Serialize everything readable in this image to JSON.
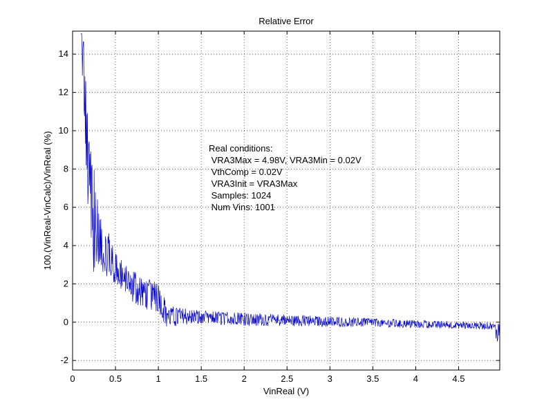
{
  "chart_data": {
    "type": "line",
    "title": "Relative Error",
    "xlabel": "VinReal (V)",
    "ylabel": "100.(VinReal-VinCalc)/VinReal  (%)",
    "xlim": [
      0,
      4.98
    ],
    "ylim": [
      -2.5,
      15.2
    ],
    "x_ticks": [
      0,
      0.5,
      1,
      1.5,
      2,
      2.5,
      3,
      3.5,
      4,
      4.5
    ],
    "x_tick_labels": [
      "0",
      "0.5",
      "1",
      "1.5",
      "2",
      "2.5",
      "3",
      "3.5",
      "4",
      "4.5"
    ],
    "y_ticks": [
      -2,
      0,
      2,
      4,
      6,
      8,
      10,
      12,
      14
    ],
    "y_tick_labels": [
      "-2",
      "0",
      "2",
      "4",
      "6",
      "8",
      "10",
      "12",
      "14"
    ],
    "grid": true,
    "line_color": "#0000cc",
    "annotation": [
      "Real conditions:",
      " VRA3Max = 4.98V, VRA3Min = 0.02V",
      " VthComp = 0.02V",
      " VRA3Init = VRA3Max",
      " Samples: 1024",
      " Num Vins: 1001"
    ],
    "series": [
      {
        "x": [
          0.1,
          0.12,
          0.14,
          0.16,
          0.18,
          0.2,
          0.25,
          0.3,
          0.35,
          0.4,
          0.5,
          0.6,
          0.7,
          0.8,
          0.9,
          1.0,
          1.1,
          1.2,
          1.5,
          2.0,
          2.5,
          3.0,
          3.5,
          4.0,
          4.5,
          4.9,
          4.95,
          4.98
        ],
        "y": [
          15.2,
          13,
          11,
          9,
          7,
          6,
          4.5,
          3.8,
          3.3,
          3.0,
          2.6,
          2.2,
          1.9,
          1.6,
          1.4,
          1.3,
          0.4,
          0.35,
          0.3,
          0.2,
          0.1,
          0.0,
          -0.05,
          -0.1,
          -0.15,
          -0.2,
          -0.5,
          0.0
        ],
        "spread_low": [
          13.5,
          11.5,
          9.5,
          7.5,
          5.5,
          2.5,
          2.4,
          2.4,
          2.4,
          2.4,
          2.0,
          1.5,
          1.0,
          0.8,
          0.6,
          0.5,
          -0.3,
          -0.2,
          -0.1,
          -0.2,
          -0.2,
          -0.25,
          -0.25,
          -0.3,
          -0.35,
          -0.4,
          -1.2,
          -0.5
        ],
        "spread_high": [
          15.2,
          15.2,
          14.5,
          12.5,
          10.5,
          9.5,
          8.0,
          6.5,
          5.5,
          5.0,
          3.8,
          3.0,
          2.8,
          2.5,
          2.3,
          2.0,
          1.0,
          0.8,
          0.6,
          0.5,
          0.4,
          0.3,
          0.2,
          0.1,
          0.05,
          0.0,
          -0.2,
          0.2
        ]
      }
    ]
  }
}
